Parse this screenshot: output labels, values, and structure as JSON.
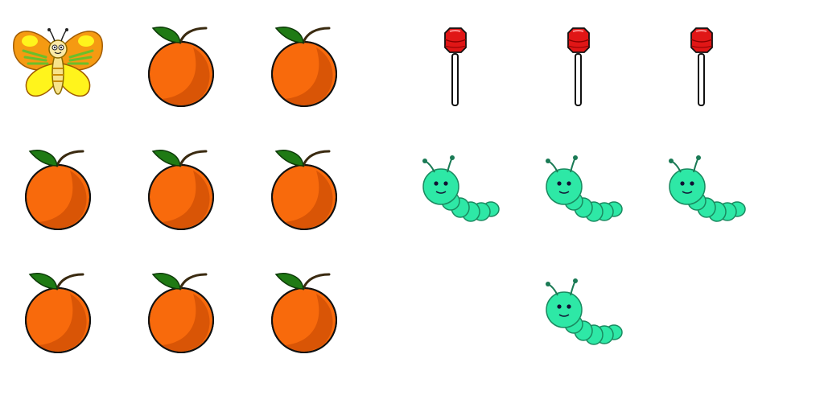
{
  "left_grid": {
    "rows": [
      [
        "butterfly-icon",
        "orange-icon",
        "orange-icon"
      ],
      [
        "orange-icon",
        "orange-icon",
        "orange-icon"
      ],
      [
        "orange-icon",
        "orange-icon",
        "orange-icon"
      ]
    ]
  },
  "right_grid": {
    "rows": [
      [
        "lollipop-icon",
        "lollipop-icon",
        "lollipop-icon"
      ],
      [
        "caterpillar-icon",
        "caterpillar-icon",
        "caterpillar-icon"
      ],
      [
        "",
        "caterpillar-icon",
        ""
      ]
    ]
  },
  "colors": {
    "background": "#ffffff",
    "orange_fill": "#f86a0c",
    "orange_shade": "#d95506",
    "leaf": "#1f7a14",
    "lollipop_red": "#e01616",
    "caterpillar_green": "#2ee8a6",
    "butterfly_orange": "#f59a12",
    "butterfly_yellow": "#fff41c"
  }
}
